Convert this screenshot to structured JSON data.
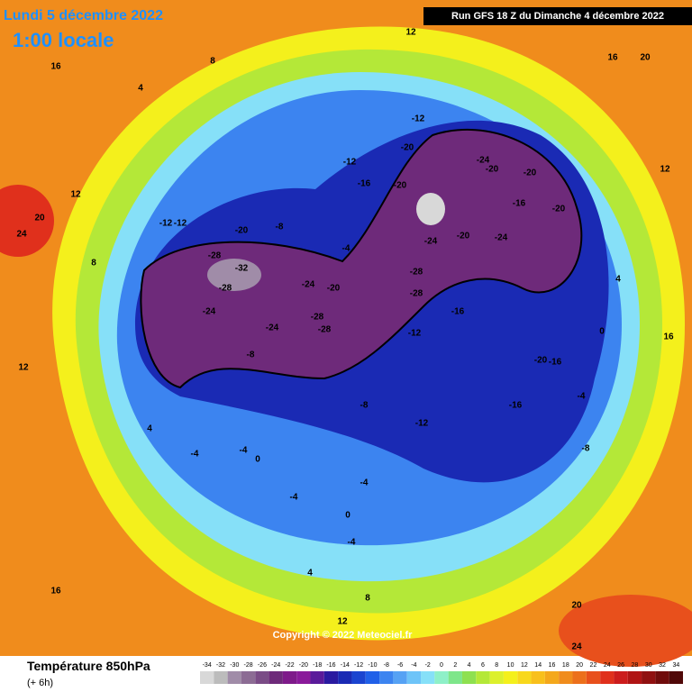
{
  "header": {
    "date": "Lundi 5 décembre 2022",
    "time": "1:00 locale",
    "run": "Run GFS 18 Z du Dimanche 4 décembre 2022"
  },
  "footer": {
    "title": "Température 850hPa",
    "lead": "(+ 6h)",
    "copyright": "Copyright © 2022 Meteociel.fr"
  },
  "legend": {
    "ticks": [
      -34,
      -32,
      -30,
      -28,
      -26,
      -24,
      -22,
      -20,
      -18,
      -16,
      -14,
      -12,
      -10,
      -8,
      -6,
      -4,
      -2,
      0,
      2,
      4,
      6,
      8,
      10,
      12,
      14,
      16,
      18,
      20,
      22,
      24,
      26,
      28,
      30,
      32,
      34
    ],
    "colors": [
      "#d8d8d8",
      "#bcbcbc",
      "#a08ca8",
      "#8c6c94",
      "#7a4c86",
      "#6e2a7a",
      "#7e1a8a",
      "#8a1a9a",
      "#5a1a9a",
      "#2a1aa0",
      "#1a2ab4",
      "#1a44d0",
      "#2060e8",
      "#3c84f0",
      "#56a2f4",
      "#6ec4f8",
      "#86e0f8",
      "#8ef0c8",
      "#7ee68a",
      "#8ee050",
      "#b4e838",
      "#dcf02c",
      "#f4f01c",
      "#f8d81c",
      "#f8c01c",
      "#f4a81c",
      "#f08c1c",
      "#ec701c",
      "#e8501c",
      "#e0301c",
      "#cc1c1c",
      "#b01414",
      "#901010",
      "#700c0c",
      "#500808"
    ]
  },
  "map_labels": [
    -32,
    -28,
    -28,
    -24,
    -24,
    -28,
    -28,
    -24,
    -20,
    -28,
    -28,
    -24,
    -20,
    -20,
    -24,
    -20,
    -20,
    -16,
    -20,
    -24,
    -16,
    -12,
    -12,
    -20,
    -16,
    -12,
    -16,
    -20,
    -16,
    -12,
    -8,
    -8,
    -4,
    -4,
    0,
    -4,
    -4,
    0,
    -4,
    4,
    8,
    12,
    16,
    16,
    12,
    16,
    20,
    20,
    24,
    12,
    8,
    12,
    16,
    20,
    24,
    4,
    8,
    4,
    -8,
    -4,
    0,
    4,
    12,
    -12,
    -12,
    -20,
    -8,
    -4
  ]
}
